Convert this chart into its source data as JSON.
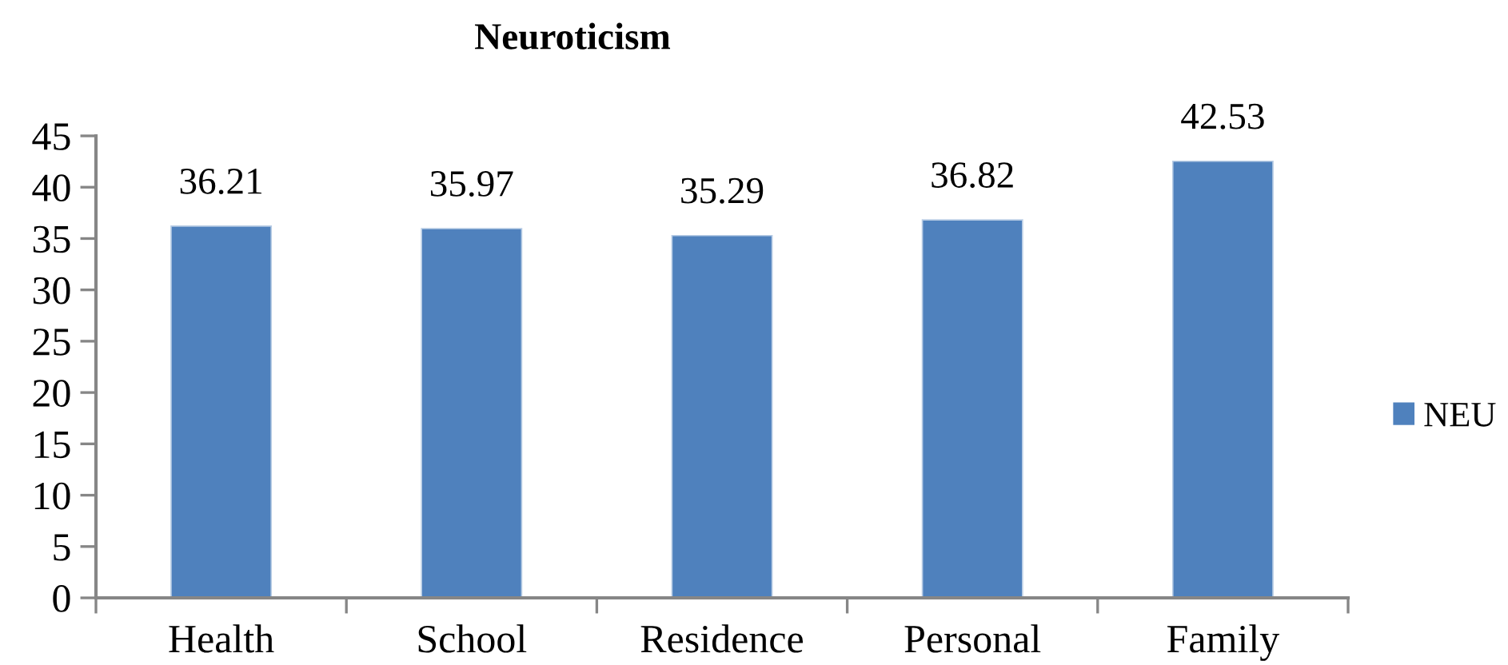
{
  "chart_data": {
    "type": "bar",
    "title": "Neuroticism",
    "categories": [
      "Health",
      "School",
      "Residence",
      "Personal",
      "Family"
    ],
    "series": [
      {
        "name": "NEU",
        "color": "#4f81bd",
        "values": [
          36.21,
          35.97,
          35.29,
          36.82,
          42.53
        ]
      }
    ],
    "ylim": [
      0,
      45
    ],
    "yticks": [
      0,
      5,
      10,
      15,
      20,
      25,
      30,
      35,
      40,
      45
    ],
    "data_labels": true,
    "legend": "right",
    "grid": false
  }
}
